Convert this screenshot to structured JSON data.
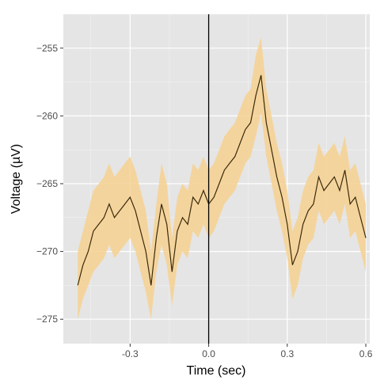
{
  "chart_data": {
    "type": "line",
    "title": "",
    "xlabel": "Time (sec)",
    "ylabel": "Voltage (µV)",
    "xlim": [
      -0.555,
      0.615
    ],
    "ylim": [
      -276.8,
      -252.5
    ],
    "x_ticks": [
      -0.3,
      0.0,
      0.3,
      0.6
    ],
    "x_tick_labels": [
      "-0.3",
      "0.0",
      "0.3",
      "0.6"
    ],
    "y_ticks": [
      -275,
      -270,
      -265,
      -260,
      -255
    ],
    "y_tick_labels": [
      "−275",
      "−270",
      "−265",
      "−260",
      "−255"
    ],
    "grid": true,
    "vline_x": 0.0,
    "colors": {
      "panel_bg": "#e5e5e5",
      "grid_major": "#ffffff",
      "grid_minor": "#f2f2f2",
      "ribbon": "#f7d190",
      "line": "#3a2a0a",
      "vline": "#000000"
    },
    "series": [
      {
        "x": [
          -0.5,
          -0.48,
          -0.46,
          -0.44,
          -0.42,
          -0.4,
          -0.38,
          -0.36,
          -0.34,
          -0.32,
          -0.3,
          -0.28,
          -0.26,
          -0.24,
          -0.22,
          -0.2,
          -0.18,
          -0.16,
          -0.14,
          -0.12,
          -0.1,
          -0.08,
          -0.06,
          -0.04,
          -0.02,
          0.0,
          0.02,
          0.04,
          0.06,
          0.08,
          0.1,
          0.12,
          0.14,
          0.16,
          0.18,
          0.2,
          0.22,
          0.24,
          0.26,
          0.28,
          0.3,
          0.32,
          0.34,
          0.36,
          0.38,
          0.4,
          0.42,
          0.44,
          0.46,
          0.48,
          0.5,
          0.52,
          0.54,
          0.56,
          0.58,
          0.6
        ],
        "y": [
          -272.5,
          -271.0,
          -270.0,
          -268.5,
          -268.0,
          -267.5,
          -266.5,
          -267.5,
          -267.0,
          -266.5,
          -266.0,
          -267.0,
          -268.5,
          -270.0,
          -272.5,
          -269.0,
          -266.5,
          -268.0,
          -271.5,
          -268.5,
          -267.5,
          -268.0,
          -266.0,
          -266.5,
          -265.5,
          -266.5,
          -266.0,
          -265.0,
          -264.0,
          -263.5,
          -263.0,
          -262.0,
          -261.0,
          -260.5,
          -258.5,
          -257.0,
          -260.5,
          -262.5,
          -264.5,
          -266.0,
          -268.0,
          -271.0,
          -270.0,
          -268.0,
          -267.0,
          -266.5,
          -264.5,
          -265.5,
          -265.0,
          -264.5,
          -265.5,
          -264.0,
          -266.5,
          -266.0,
          -267.5,
          -269.0
        ],
        "lower": [
          -275.0,
          -273.5,
          -272.5,
          -271.5,
          -271.0,
          -270.5,
          -269.5,
          -270.5,
          -270.0,
          -269.5,
          -269.0,
          -270.0,
          -271.5,
          -273.0,
          -275.0,
          -271.5,
          -269.5,
          -271.0,
          -274.0,
          -271.0,
          -270.0,
          -270.5,
          -268.5,
          -269.0,
          -268.0,
          -269.0,
          -268.5,
          -267.5,
          -266.5,
          -266.0,
          -265.5,
          -264.5,
          -263.5,
          -263.0,
          -261.5,
          -259.8,
          -263.0,
          -265.0,
          -267.0,
          -268.5,
          -270.5,
          -273.5,
          -272.5,
          -270.5,
          -269.5,
          -269.0,
          -267.0,
          -268.0,
          -267.5,
          -267.0,
          -268.0,
          -266.5,
          -269.0,
          -268.5,
          -270.0,
          -271.5
        ],
        "upper": [
          -270.0,
          -268.5,
          -267.0,
          -265.5,
          -265.0,
          -264.5,
          -263.5,
          -264.5,
          -264.0,
          -263.5,
          -263.0,
          -264.0,
          -265.5,
          -267.0,
          -270.0,
          -266.5,
          -263.5,
          -265.0,
          -269.0,
          -266.0,
          -265.0,
          -265.5,
          -263.5,
          -264.0,
          -263.0,
          -264.0,
          -263.5,
          -262.5,
          -261.5,
          -261.0,
          -260.5,
          -259.5,
          -258.5,
          -258.0,
          -255.5,
          -254.2,
          -258.0,
          -260.0,
          -262.0,
          -263.5,
          -265.5,
          -268.5,
          -267.5,
          -265.5,
          -264.5,
          -264.0,
          -262.0,
          -263.0,
          -262.5,
          -262.0,
          -263.0,
          -261.5,
          -264.0,
          -263.5,
          -265.0,
          -266.5
        ]
      }
    ]
  }
}
